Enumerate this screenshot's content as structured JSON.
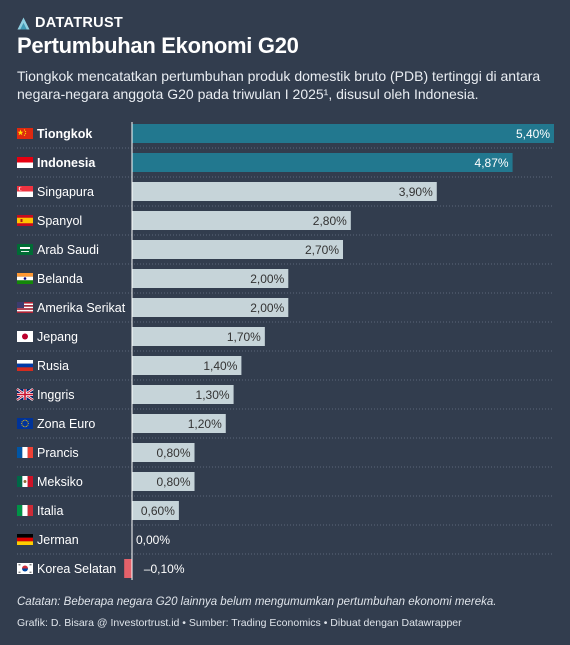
{
  "brand": {
    "name": "DATATRUST",
    "logo_icon": "datatrust-logo-icon"
  },
  "title": "Pertumbuhan Ekonomi G20",
  "subtitle": "Tiongkok mencatatkan pertumbuhan produk domestik bruto (PDB) tertinggi di antara negara-negara anggota G20 pada triwulan I 2025¹, disusul oleh Indonesia.",
  "note": "Catatan: Beberapa negara G20 lainnya belum mengumumkan pertumbuhan ekonomi mereka.",
  "credits": "Grafik: D. Bisara @ Investortrust.id • Sumber: Trading Economics • Dibuat dengan Datawrapper",
  "colors": {
    "background": "#323d4e",
    "highlight_bar": "#22788f",
    "default_bar": "#c6d4d9",
    "negative_bar": "#e4616a"
  },
  "chart_data": {
    "type": "bar",
    "orientation": "horizontal",
    "categories": [
      "Tiongkok",
      "Indonesia",
      "Singapura",
      "Spanyol",
      "Arab Saudi",
      "Belanda",
      "Amerika Serikat",
      "Jepang",
      "Rusia",
      "Inggris",
      "Zona Euro",
      "Prancis",
      "Meksiko",
      "Italia",
      "Jerman",
      "Korea Selatan"
    ],
    "values": [
      5.4,
      4.87,
      3.9,
      2.8,
      2.7,
      2.0,
      2.0,
      1.7,
      1.4,
      1.3,
      1.2,
      0.8,
      0.8,
      0.6,
      0.0,
      -0.1
    ],
    "value_labels": [
      "5,40%",
      "4,87%",
      "3,90%",
      "2,80%",
      "2,70%",
      "2,00%",
      "2,00%",
      "1,70%",
      "1,40%",
      "1,30%",
      "1,20%",
      "0,80%",
      "0,80%",
      "0,60%",
      "0,00%",
      "–0,10%"
    ],
    "flags": [
      "cn",
      "id",
      "sg",
      "es",
      "sa",
      "in",
      "us",
      "jp",
      "ru",
      "gb",
      "eu",
      "fr",
      "mx",
      "it",
      "de",
      "kr"
    ],
    "highlighted": [
      "Tiongkok",
      "Indonesia"
    ],
    "xlim": [
      -0.1,
      5.4
    ],
    "grid": false
  }
}
